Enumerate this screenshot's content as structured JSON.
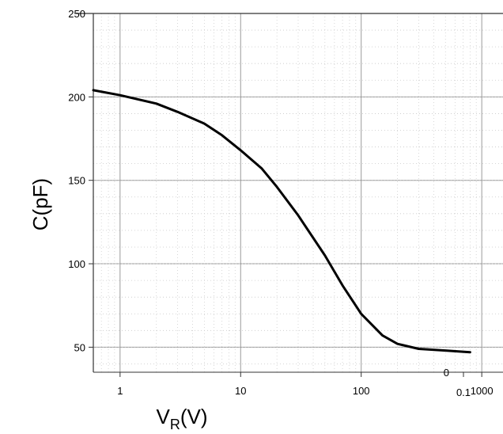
{
  "colors": {
    "curve": "#000000",
    "grid": "#9a9a9a",
    "frame": "#333333",
    "background": "#ffffff"
  },
  "chart_data": [
    {
      "type": "line",
      "title": "",
      "ylabel_main": "C(pF)",
      "xlabel_main": "V",
      "xlabel_sub": "R",
      "xlabel_tail": "(V)",
      "x_scale": "log",
      "xlim": [
        0.6,
        1500
      ],
      "ylim": [
        35,
        250
      ],
      "x_ticks": [
        {
          "value": 1,
          "label": "1"
        },
        {
          "value": 10,
          "label": "10"
        },
        {
          "value": 100,
          "label": "100"
        },
        {
          "value": 1000,
          "label": "1000"
        }
      ],
      "y_ticks": [
        {
          "value": 50,
          "label": "50"
        },
        {
          "value": 100,
          "label": "100"
        },
        {
          "value": 150,
          "label": "150"
        },
        {
          "value": 200,
          "label": "200"
        },
        {
          "value": 250,
          "label": "250"
        }
      ],
      "grid": true,
      "series": [
        {
          "x": [
            0.6,
            1,
            2,
            3,
            5,
            7,
            10,
            15,
            20,
            30,
            50,
            70,
            100,
            150,
            200,
            300,
            500,
            800
          ],
          "y": [
            204,
            201,
            196,
            191,
            184,
            177,
            168,
            157,
            146,
            129,
            105,
            87,
            70,
            57,
            52,
            49,
            48,
            47
          ]
        }
      ]
    },
    {
      "type": "line",
      "title": "",
      "x_ticks": [
        {
          "value": 0.1,
          "label": "0.1"
        }
      ],
      "y_ticks": [
        {
          "value": 0,
          "label": "0"
        }
      ],
      "grid": true,
      "series": []
    }
  ]
}
